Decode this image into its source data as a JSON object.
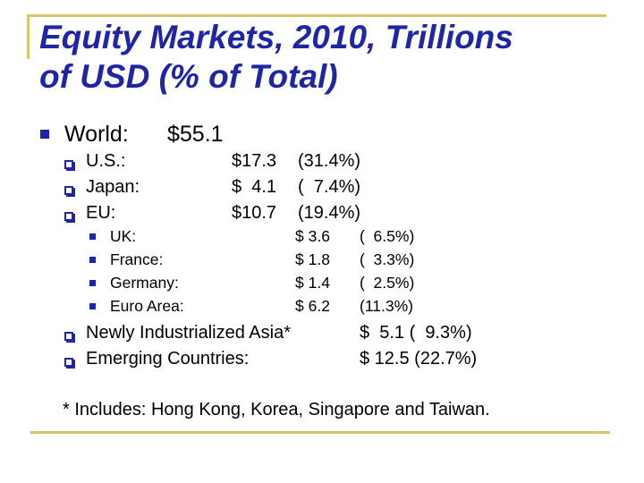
{
  "title": {
    "line1": "Equity Markets, 2010, Trillions",
    "line2": "of USD (% of Total)"
  },
  "colors": {
    "accent": "#1f26a6",
    "rule": "#d7c56a"
  },
  "world": {
    "label": "World:",
    "value": "$55.1"
  },
  "regions": [
    {
      "label": "U.S.:",
      "value": "$17.3",
      "pct": "(31.4%)"
    },
    {
      "label": "Japan:",
      "value": "$  4.1",
      "pct": "(  7.4%)"
    },
    {
      "label": "EU:",
      "value": "$10.7",
      "pct": "(19.4%)"
    }
  ],
  "eu_countries": [
    {
      "label": "UK:",
      "value": "$ 3.6",
      "pct": "(  6.5%)"
    },
    {
      "label": "France:",
      "value": "$ 1.8",
      "pct": "(  3.3%)"
    },
    {
      "label": "Germany:",
      "value": "$ 1.4",
      "pct": "(  2.5%)"
    },
    {
      "label": "Euro Area:",
      "value": "$ 6.2",
      "pct": "(11.3%)"
    }
  ],
  "others": [
    {
      "label": "Newly Industrialized Asia*",
      "value": "$  5.1 (  9.3%)"
    },
    {
      "label": "Emerging Countries:",
      "value": "$ 12.5 (22.7%)"
    }
  ],
  "footnote": "* Includes: Hong Kong, Korea, Singapore and Taiwan."
}
